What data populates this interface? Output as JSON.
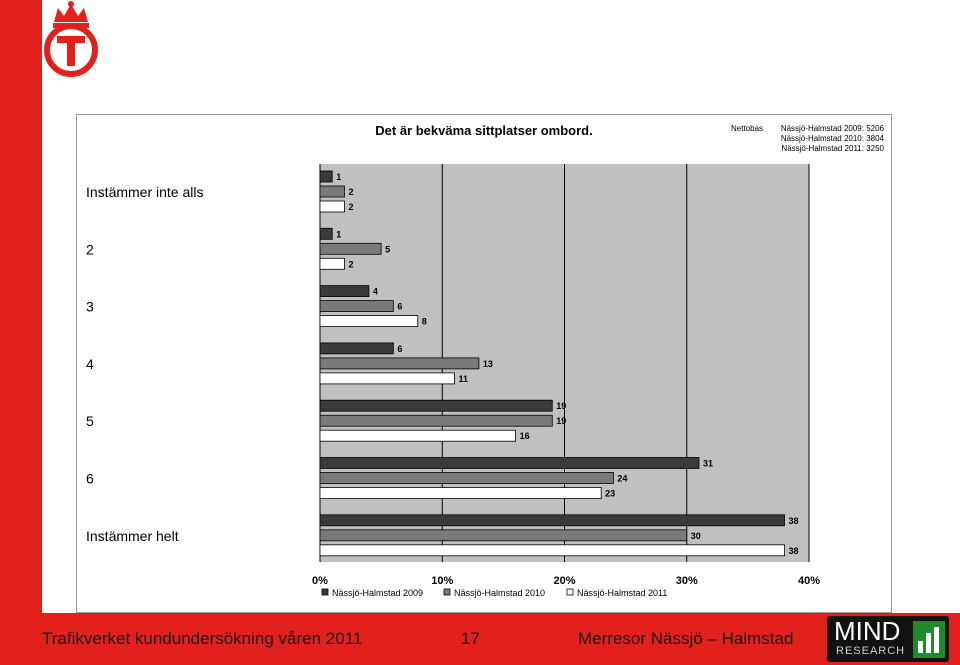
{
  "footer": {
    "left_text": "Trafikverket kundundersökning våren 2011",
    "page_number": "17",
    "right_text": "Merresor Nässjö – Halmstad"
  },
  "mind_logo": {
    "word": "MIND",
    "sub": "RESEARCH"
  },
  "colors": {
    "brand_red": "#e2211c",
    "plot_bg": "#c0c0c0",
    "series_2009": "#3a3a3a",
    "series_2010": "#7a7a7a",
    "series_2011": "#ffffff"
  },
  "chart_data": {
    "type": "bar",
    "orientation": "horizontal",
    "title": "Det är bekväma sittplatser ombord.",
    "nettobas_label": "Nettobas",
    "nettobas": [
      "Nässjö-Halmstad 2009: 5206",
      "Nässjö-Halmstad 2010: 3804",
      "Nässjö-Halmstad 2011: 3250"
    ],
    "categories": [
      "Instämmer inte alls",
      "2",
      "3",
      "4",
      "5",
      "6",
      "Instämmer helt"
    ],
    "series": [
      {
        "name": "Nässjö-Halmstad 2009",
        "values": [
          1,
          1,
          4,
          6,
          19,
          31,
          38
        ]
      },
      {
        "name": "Nässjö-Halmstad 2010",
        "values": [
          2,
          5,
          6,
          13,
          19,
          24,
          30
        ]
      },
      {
        "name": "Nässjö-Halmstad 2011",
        "values": [
          2,
          2,
          8,
          11,
          16,
          23,
          38
        ]
      }
    ],
    "xlim": [
      0,
      40
    ],
    "xticks": [
      "0%",
      "10%",
      "20%",
      "30%",
      "40%"
    ],
    "grid": true,
    "legend_position": "bottom"
  }
}
